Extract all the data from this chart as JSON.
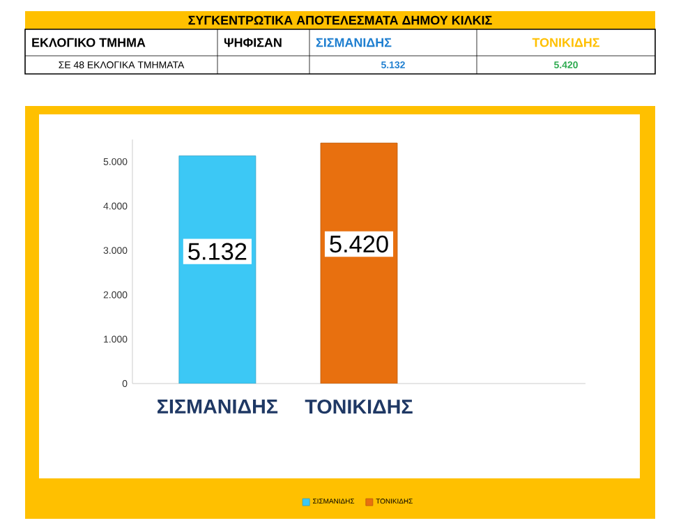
{
  "chart_data": {
    "type": "bar",
    "title": "ΣΥΓΚΕΝΤΡΩΤΙΚΑ ΑΠΟΤΕΛΕΣΜΑΤΑ  ΔΗΜΟΥ ΚΙΛΚΙΣ",
    "annotations": [
      "ΕΚΛΟΓΙΚΟ  ΤΜΗΜΑ",
      "ΨΗΦΙΣΑΝ",
      "ΣΕ 48 ΕΚΛΟΓΙΚΑ ΤΜΗΜΑΤΑ"
    ],
    "categories": [
      "ΣΙΣΜΑΝΙΔΗΣ",
      "ΤΟΝΙΚΙΔΗΣ"
    ],
    "series": [
      {
        "name": "ΣΙΣΜΑΝΙΔΗΣ",
        "color": "#3cc8f5",
        "values": [
          5132,
          null
        ],
        "value_labels": [
          "5.132",
          null
        ]
      },
      {
        "name": "ΤΟΝΙΚΙΔΗΣ",
        "color": "#e8700f",
        "values": [
          null,
          5420
        ],
        "value_labels": [
          null,
          "5.420"
        ]
      }
    ],
    "ylim": [
      0,
      5500
    ],
    "yticks": [
      0,
      {
        "value": 1000,
        "label": "1.000"
      },
      {
        "value": 2000,
        "label": "2.000"
      },
      {
        "value": 3000,
        "label": "3.000"
      },
      {
        "value": 4000,
        "label": "4.000"
      },
      {
        "value": 5000,
        "label": "5.000"
      }
    ],
    "grid": false,
    "legend": "bottom"
  }
}
